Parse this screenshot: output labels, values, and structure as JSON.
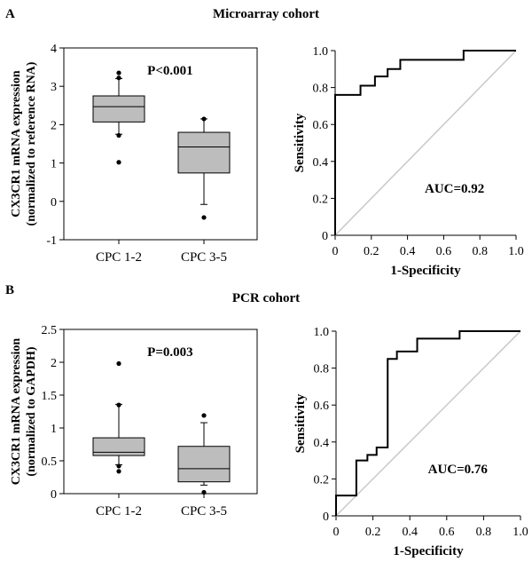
{
  "panels": [
    {
      "letter": "A",
      "cohort_title": "Microarray cohort",
      "boxplot": {
        "ylabel_line1": "CX3CR1 mRNA expression",
        "ylabel_line2": "(normalized to reference RNA)",
        "annotation": "P<0.001",
        "ylim": [
          -1,
          4
        ],
        "yticks": [
          "-1",
          "0",
          "1",
          "2",
          "3",
          "4"
        ],
        "box_color": "#bdbdbd",
        "groups": [
          {
            "label": "CPC 1-2",
            "whisker_low": 1.75,
            "q1": 2.07,
            "median": 2.47,
            "q3": 2.75,
            "whisker_high": 3.2,
            "outliers": [
              3.35,
              3.22,
              1.72,
              1.02
            ]
          },
          {
            "label": "CPC 3-5",
            "whisker_low": -0.08,
            "q1": 0.74,
            "median": 1.42,
            "q3": 1.8,
            "whisker_high": 2.15,
            "outliers": [
              2.15,
              -0.42
            ]
          }
        ]
      },
      "roc": {
        "xlabel": "1-Specificity",
        "ylabel": "Sensitivity",
        "annotation": "AUC=0.92",
        "ticks": [
          "0",
          "0.2",
          "0.4",
          "0.6",
          "0.8",
          "1.0"
        ],
        "points": [
          [
            0,
            0
          ],
          [
            0,
            0.76
          ],
          [
            0.14,
            0.76
          ],
          [
            0.14,
            0.81
          ],
          [
            0.22,
            0.81
          ],
          [
            0.22,
            0.86
          ],
          [
            0.29,
            0.86
          ],
          [
            0.29,
            0.9
          ],
          [
            0.36,
            0.9
          ],
          [
            0.36,
            0.95
          ],
          [
            0.71,
            0.95
          ],
          [
            0.71,
            1.0
          ],
          [
            1.0,
            1.0
          ]
        ]
      }
    },
    {
      "letter": "B",
      "cohort_title": "PCR cohort",
      "boxplot": {
        "ylabel_line1": "CX3CR1 mRNA expression",
        "ylabel_line2": "(normalized to GAPDH)",
        "annotation": "P=0.003",
        "ylim": [
          0,
          2.5
        ],
        "yticks": [
          "0",
          "0.5",
          "1",
          "1.5",
          "2",
          "2.5"
        ],
        "box_color": "#bdbdbd",
        "groups": [
          {
            "label": "CPC 1-2",
            "whisker_low": 0.44,
            "q1": 0.58,
            "median": 0.63,
            "q3": 0.85,
            "whisker_high": 1.36,
            "outliers": [
              1.98,
              1.35,
              0.42,
              0.34
            ]
          },
          {
            "label": "CPC 3-5",
            "whisker_low": 0.13,
            "q1": 0.18,
            "median": 0.38,
            "q3": 0.72,
            "whisker_high": 1.08,
            "outliers": [
              1.19,
              0.02
            ]
          }
        ]
      },
      "roc": {
        "xlabel": "1-Specificity",
        "ylabel": "Sensitivity",
        "annotation": "AUC=0.76",
        "ticks": [
          "0",
          "0.2",
          "0.4",
          "0.6",
          "0.8",
          "1.0"
        ],
        "points": [
          [
            0,
            0
          ],
          [
            0,
            0.11
          ],
          [
            0.11,
            0.11
          ],
          [
            0.11,
            0.3
          ],
          [
            0.17,
            0.3
          ],
          [
            0.17,
            0.33
          ],
          [
            0.22,
            0.33
          ],
          [
            0.22,
            0.37
          ],
          [
            0.28,
            0.37
          ],
          [
            0.28,
            0.85
          ],
          [
            0.33,
            0.85
          ],
          [
            0.33,
            0.89
          ],
          [
            0.44,
            0.89
          ],
          [
            0.44,
            0.96
          ],
          [
            0.67,
            0.96
          ],
          [
            0.67,
            1.0
          ],
          [
            1.0,
            1.0
          ]
        ]
      }
    }
  ],
  "chart_data": [
    {
      "type": "box",
      "title": "Microarray cohort",
      "ylabel": "CX3CR1 mRNA expression (normalized to reference RNA)",
      "ylim": [
        -1,
        4
      ],
      "categories": [
        "CPC 1-2",
        "CPC 3-5"
      ],
      "annotation": "P<0.001"
    },
    {
      "type": "line",
      "title": "Microarray cohort",
      "xlabel": "1-Specificity",
      "ylabel": "Sensitivity",
      "xlim": [
        0,
        1
      ],
      "ylim": [
        0,
        1
      ],
      "annotation": "AUC=0.92"
    },
    {
      "type": "box",
      "title": "PCR cohort",
      "ylabel": "CX3CR1 mRNA expression (normalized to GAPDH)",
      "ylim": [
        0,
        2.5
      ],
      "categories": [
        "CPC 1-2",
        "CPC 3-5"
      ],
      "annotation": "P=0.003"
    },
    {
      "type": "line",
      "title": "PCR cohort",
      "xlabel": "1-Specificity",
      "ylabel": "Sensitivity",
      "xlim": [
        0,
        1
      ],
      "ylim": [
        0,
        1
      ],
      "annotation": "AUC=0.76"
    }
  ]
}
